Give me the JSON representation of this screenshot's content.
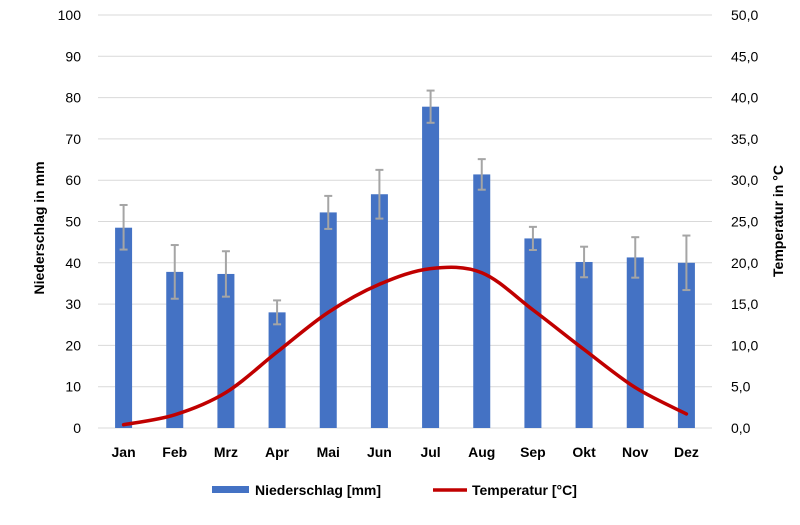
{
  "chart_data": {
    "type": "bar+line",
    "categories": [
      "Jan",
      "Feb",
      "Mrz",
      "Apr",
      "Mai",
      "Jun",
      "Jul",
      "Aug",
      "Sep",
      "Okt",
      "Nov",
      "Dez"
    ],
    "series": [
      {
        "name": "Niederschlag [mm]",
        "type": "bar",
        "axis": "left",
        "color": "#4472C4",
        "values": [
          48.5,
          37.8,
          37.3,
          28.0,
          52.2,
          56.6,
          77.8,
          61.4,
          45.9,
          40.2,
          41.3,
          40.0
        ],
        "error_upper": [
          54.0,
          44.3,
          42.8,
          30.9,
          56.2,
          62.5,
          81.7,
          65.1,
          48.7,
          43.9,
          46.2,
          46.6
        ],
        "error_lower": [
          43.2,
          31.3,
          31.8,
          25.1,
          48.2,
          50.7,
          73.9,
          57.7,
          43.1,
          36.5,
          36.4,
          33.4
        ],
        "error_color": "#A5A5A5"
      },
      {
        "name": "Temperatur [°C]",
        "type": "line",
        "axis": "right",
        "color": "#C00000",
        "values": [
          0.4,
          1.6,
          4.3,
          9.2,
          14.0,
          17.4,
          19.3,
          18.8,
          14.3,
          9.5,
          4.9,
          1.7
        ]
      }
    ],
    "y_left": {
      "label": "Niederschlag in mm",
      "range": [
        0,
        100
      ],
      "ticks": [
        "0",
        "10",
        "20",
        "30",
        "40",
        "50",
        "60",
        "70",
        "80",
        "90",
        "100"
      ]
    },
    "y_right": {
      "label": "Temperatur in  °C",
      "range": [
        0,
        50
      ],
      "ticks": [
        "0,0",
        "5,0",
        "10,0",
        "15,0",
        "20,0",
        "25,0",
        "30,0",
        "35,0",
        "40,0",
        "45,0",
        "50,0"
      ]
    },
    "gridlines": true,
    "legend_position": "bottom",
    "grid_color": "#D9D9D9"
  }
}
